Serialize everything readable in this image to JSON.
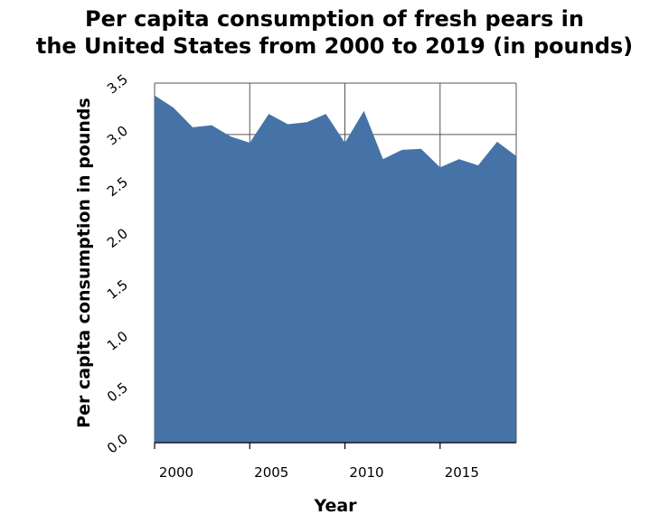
{
  "chart_data": {
    "type": "area",
    "title_lines": [
      "Per capita consumption of fresh pears in",
      "the United States from 2000 to 2019 (in pounds)"
    ],
    "xlabel": "Year",
    "ylabel": "Per capita consumption in pounds",
    "xlim": [
      2000,
      2019
    ],
    "ylim": [
      0,
      3.5
    ],
    "x_ticks": [
      2000,
      2005,
      2010,
      2015
    ],
    "y_ticks": [
      "0.0",
      "0.5",
      "1.0",
      "1.5",
      "2.0",
      "2.5",
      "3.0",
      "3.5"
    ],
    "grid": true,
    "fill_color": "#4673a7",
    "x": [
      2000,
      2001,
      2002,
      2003,
      2004,
      2005,
      2006,
      2007,
      2008,
      2009,
      2010,
      2011,
      2012,
      2013,
      2014,
      2015,
      2016,
      2017,
      2018,
      2019
    ],
    "values": [
      3.38,
      3.26,
      3.07,
      3.09,
      2.98,
      2.92,
      3.2,
      3.1,
      3.12,
      3.2,
      2.92,
      3.23,
      2.76,
      2.85,
      2.86,
      2.68,
      2.76,
      2.7,
      2.93,
      2.79
    ]
  }
}
